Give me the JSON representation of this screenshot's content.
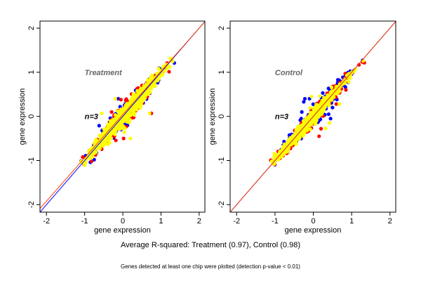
{
  "chart_data": [
    {
      "type": "scatter",
      "title": "Treatment",
      "annotation": "n=3",
      "xlabel": "gene expression",
      "ylabel": "gene expression",
      "xlim": [
        -2.17,
        2.15
      ],
      "ylim": [
        -2.17,
        2.16
      ],
      "xticks": [
        -2,
        -1,
        0,
        1,
        2
      ],
      "yticks": [
        -2,
        -1,
        0,
        1,
        2
      ],
      "grid": false,
      "lines": [
        {
          "name": "blue-fit",
          "color": "#0000ff",
          "intercept": 0.0,
          "slope": 1.0
        },
        {
          "name": "red-fit",
          "color": "#ff4400",
          "intercept": 0.04,
          "slope": 0.98
        }
      ],
      "series": [
        {
          "name": "blue",
          "color": "#0000ff",
          "n": 260,
          "center": 0.1,
          "sd_along": 0.45,
          "sd_across": 0.13,
          "range": [
            -1.05,
            1.28
          ],
          "outliers": [
            [
              -0.12,
              0.4
            ],
            [
              -0.62,
              -0.21
            ],
            [
              -0.75,
              -0.98
            ],
            [
              -0.85,
              -1.04
            ]
          ]
        },
        {
          "name": "red",
          "color": "#ff0000",
          "n": 260,
          "center": 0.1,
          "sd_along": 0.45,
          "sd_across": 0.13,
          "range": [
            -1.05,
            1.28
          ],
          "outliers": [
            [
              0.75,
              0.07
            ],
            [
              0.02,
              -0.5
            ],
            [
              -0.05,
              0.38
            ],
            [
              -1.05,
              -0.92
            ]
          ]
        },
        {
          "name": "yellow",
          "color": "#ffff00",
          "n": 700,
          "center": 0.1,
          "sd_along": 0.45,
          "sd_across": 0.11,
          "range": [
            -1.05,
            1.28
          ],
          "outliers": [
            [
              0.7,
              0.07
            ],
            [
              -0.55,
              0.07
            ],
            [
              0.2,
              -0.5
            ],
            [
              -0.2,
              0.4
            ]
          ]
        }
      ]
    },
    {
      "type": "scatter",
      "title": "Control",
      "annotation": "n=3",
      "xlabel": "gene expression",
      "ylabel": "gene expression",
      "xlim": [
        -2.17,
        2.15
      ],
      "ylim": [
        -2.17,
        2.16
      ],
      "xticks": [
        -2,
        -1,
        0,
        1,
        2
      ],
      "yticks": [
        -2,
        -1,
        0,
        1,
        2
      ],
      "grid": false,
      "lines": [
        {
          "name": "blue-fit",
          "color": "#0000ff",
          "intercept": 0.0,
          "slope": 1.0
        },
        {
          "name": "red-fit",
          "color": "#ff4400",
          "intercept": 0.0,
          "slope": 1.0
        }
      ],
      "series": [
        {
          "name": "blue",
          "color": "#0000ff",
          "n": 300,
          "center": 0.0,
          "sd_along": 0.45,
          "sd_across": 0.11,
          "range": [
            -1.05,
            1.28
          ],
          "outliers": [
            [
              -0.22,
              0.4
            ],
            [
              -0.25,
              0.33
            ],
            [
              -0.3,
              0.1
            ],
            [
              0.4,
              0.05
            ],
            [
              0.45,
              -0.05
            ],
            [
              0.5,
              0.2
            ],
            [
              -0.1,
              0.4
            ]
          ]
        },
        {
          "name": "red",
          "color": "#ff0000",
          "n": 300,
          "center": 0.0,
          "sd_along": 0.45,
          "sd_across": 0.1,
          "range": [
            -1.05,
            1.28
          ],
          "outliers": [
            [
              0.6,
              0.28
            ],
            [
              0.2,
              -0.28
            ],
            [
              0.15,
              -0.45
            ],
            [
              0.85,
              0.6
            ]
          ]
        },
        {
          "name": "yellow",
          "color": "#ffff00",
          "n": 700,
          "center": -0.1,
          "sd_along": 0.42,
          "sd_across": 0.08,
          "range": [
            -1.05,
            1.28
          ],
          "outliers": [
            [
              0.68,
              0.28
            ],
            [
              0.32,
              -0.27
            ],
            [
              0.42,
              -0.15
            ],
            [
              0.17,
              0.46
            ],
            [
              -0.05,
              0.45
            ]
          ]
        }
      ]
    }
  ],
  "footer": {
    "summary": "Average R-squared: Treatment (0.97), Control (0.98)",
    "note": "Genes detected at least one chip were plotted (detection p-value < 0.01)"
  }
}
